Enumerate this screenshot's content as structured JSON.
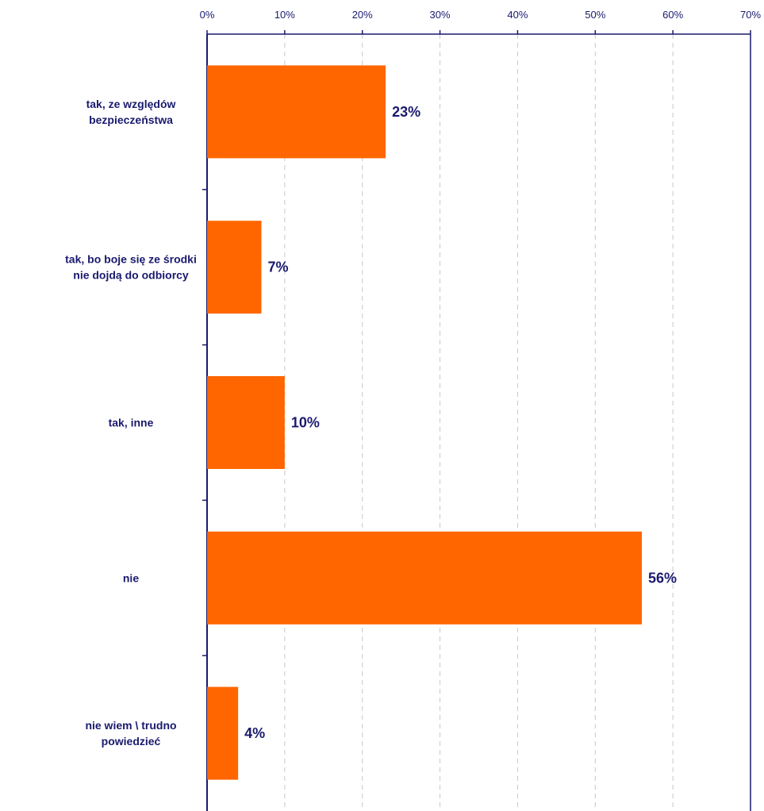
{
  "chart_data": {
    "type": "bar",
    "orientation": "horizontal",
    "title": "",
    "xlabel": "",
    "ylabel": "",
    "categories": [
      [
        "tak, ze względów",
        "bezpieczeństwa"
      ],
      [
        "tak, bo boje się ze środki",
        "nie dojdą do odbiorcy"
      ],
      [
        "tak, inne"
      ],
      [
        "nie"
      ],
      [
        "nie wiem \\ trudno",
        "powiedzieć"
      ]
    ],
    "values": [
      23,
      7,
      10,
      56,
      4
    ],
    "value_labels": [
      "23%",
      "7%",
      "10%",
      "56%",
      "4%"
    ],
    "xlim": [
      0,
      70
    ],
    "x_ticks": [
      0,
      10,
      20,
      30,
      40,
      50,
      60,
      70
    ],
    "x_tick_labels": [
      "0%",
      "10%",
      "20%",
      "30%",
      "40%",
      "50%",
      "60%",
      "70%"
    ],
    "axis_position": "top",
    "grid": true,
    "legend": "none",
    "colors": {
      "bar": "#ff6600",
      "axis": "#1a1a6e",
      "text": "#1a1a6e",
      "grid": "#c8c8c8"
    }
  }
}
